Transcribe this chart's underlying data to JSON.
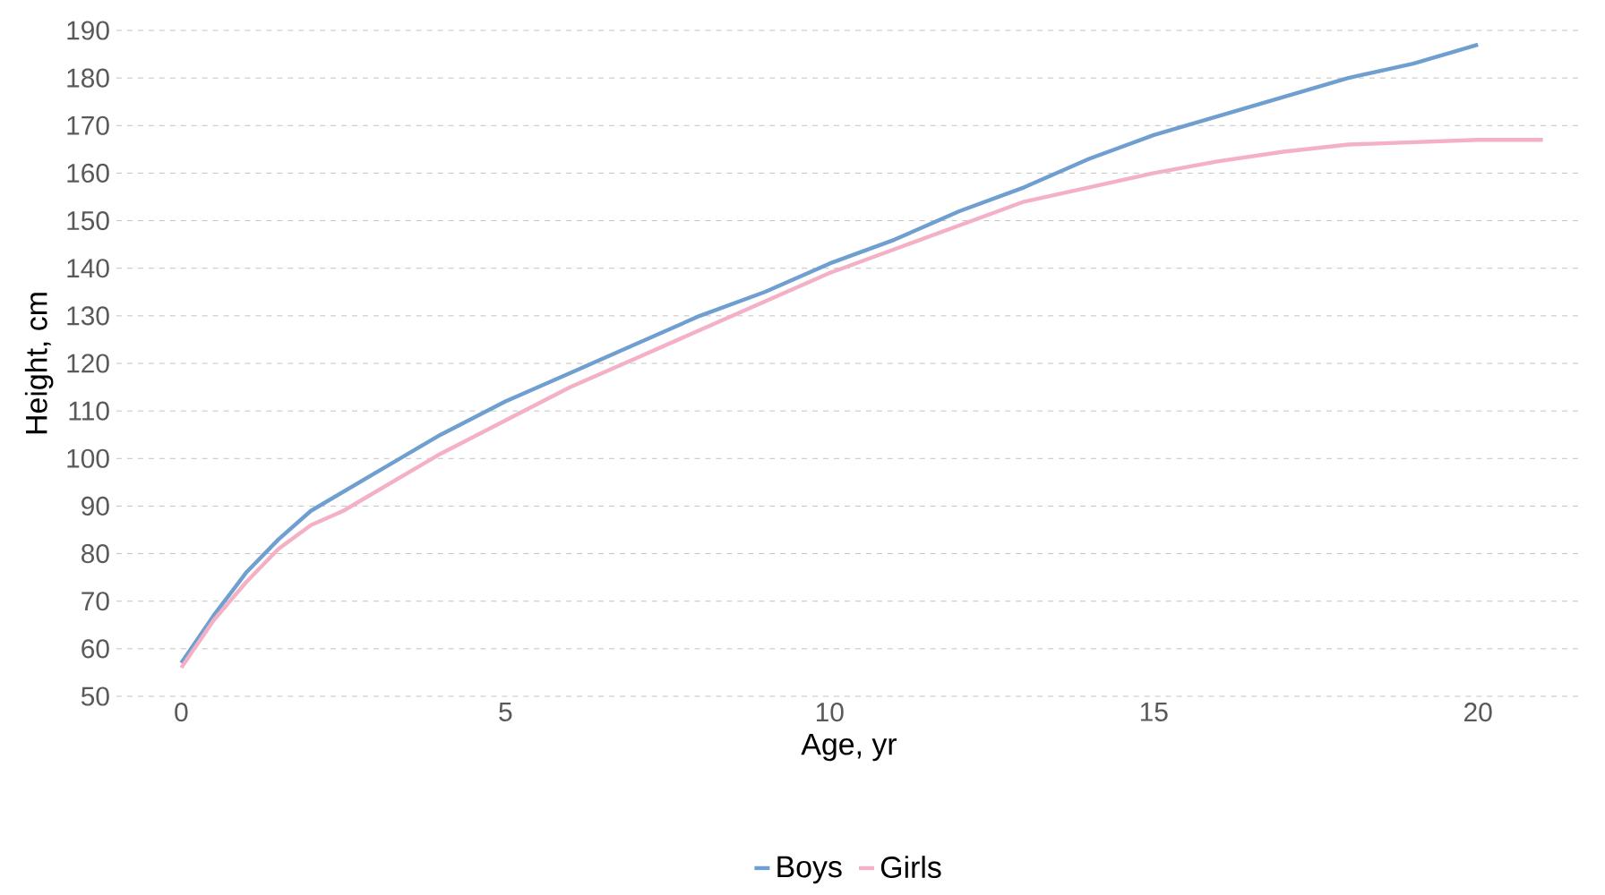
{
  "chart_data": {
    "type": "line",
    "xlabel": "Age, yr",
    "ylabel": "Height, cm",
    "xlim": [
      -1,
      21.6
    ],
    "ylim": [
      50,
      190
    ],
    "xticks": [
      0,
      5,
      10,
      15,
      20
    ],
    "yticks": [
      50,
      60,
      70,
      80,
      90,
      100,
      110,
      120,
      130,
      140,
      150,
      160,
      170,
      180,
      190
    ],
    "grid": "y",
    "legend": "bottom",
    "marker": "none",
    "line_style": "solid",
    "series": [
      {
        "name": "Boys",
        "color": "#6f9fd0",
        "x": [
          0,
          0.5,
          1,
          1.5,
          2,
          2.5,
          3,
          3.5,
          4,
          5,
          6,
          7,
          8,
          9,
          10,
          11,
          12,
          13,
          14,
          15,
          16,
          17,
          18,
          19,
          20
        ],
        "values": [
          57,
          67,
          76,
          83,
          89,
          93,
          97,
          101,
          105,
          112,
          118,
          124,
          130,
          135,
          141,
          146,
          152,
          157,
          163,
          168,
          172,
          176,
          180,
          183,
          187
        ]
      },
      {
        "name": "Girls",
        "color": "#f4b0c4",
        "x": [
          0,
          0.5,
          1,
          1.5,
          2,
          2.5,
          3,
          3.5,
          4,
          5,
          6,
          7,
          8,
          9,
          10,
          11,
          12,
          13,
          14,
          15,
          16,
          17,
          18,
          19,
          20,
          21
        ],
        "values": [
          56,
          66,
          74,
          81,
          86,
          89,
          93,
          97,
          101,
          108,
          115,
          121,
          127,
          133,
          139,
          144,
          149,
          154,
          157,
          160,
          162.5,
          164.5,
          166,
          166.5,
          167,
          167
        ]
      }
    ]
  }
}
